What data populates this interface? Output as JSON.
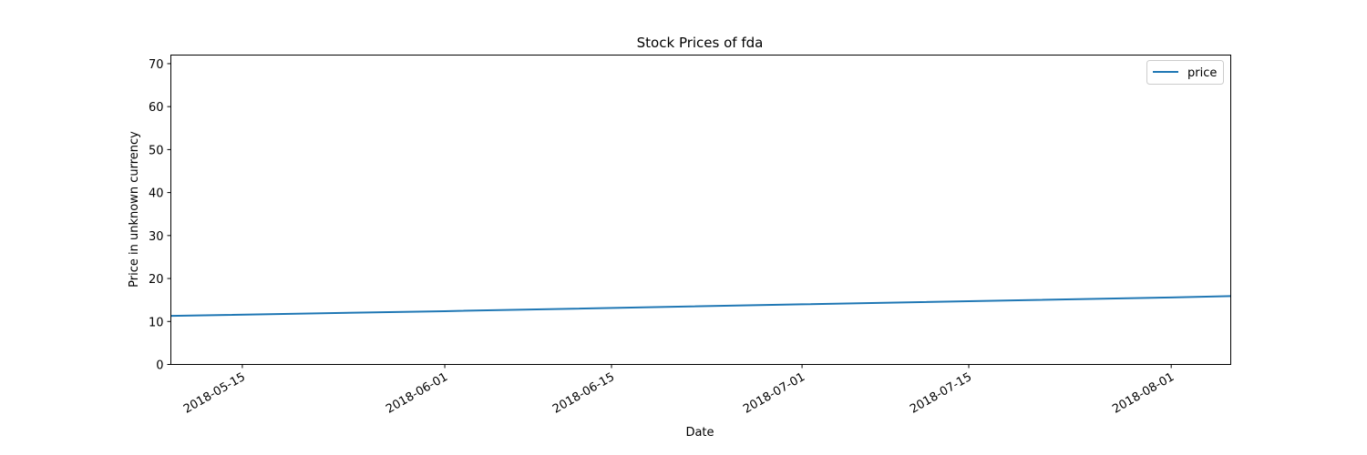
{
  "chart_data": {
    "type": "line",
    "title": "Stock Prices of fda",
    "xlabel": "Date",
    "ylabel": "Price in unknown currency",
    "x": [
      "2018-05-09",
      "2018-06-01",
      "2018-07-01",
      "2018-08-01",
      "2018-08-06"
    ],
    "series": [
      {
        "name": "price",
        "color": "#1f77b4",
        "values": [
          11.3,
          12.4,
          14.0,
          15.6,
          15.9
        ]
      }
    ],
    "xlim": [
      "2018-05-09",
      "2018-08-06"
    ],
    "ylim": [
      0,
      72
    ],
    "xticks": [
      "2018-05-15",
      "2018-06-01",
      "2018-06-15",
      "2018-07-01",
      "2018-07-15",
      "2018-08-01"
    ],
    "yticks": [
      0,
      10,
      20,
      30,
      40,
      50,
      60,
      70
    ],
    "grid": false,
    "legend_position": "top-right"
  }
}
